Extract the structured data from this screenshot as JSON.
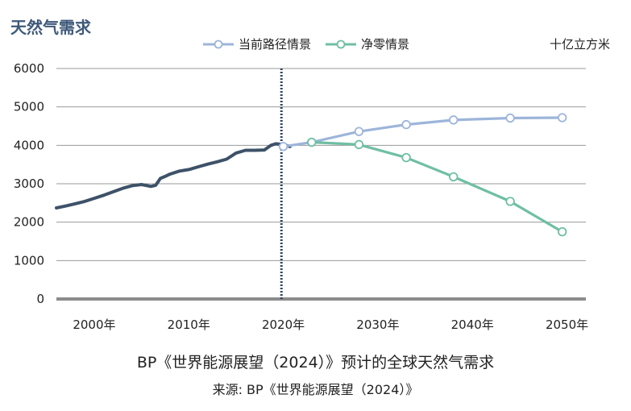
{
  "header": {
    "title": "天然气需求",
    "unit": "十亿立方米"
  },
  "footer": {
    "caption": "BP《世界能源展望（2024）》预计的全球天然气需求",
    "source": "来源: BP《世界能源展望（2024）》"
  },
  "colors": {
    "history": "#3d5268",
    "current_trajectory": "#9db5da",
    "net_zero": "#6fbfa3",
    "grid": "#9a9a9a",
    "baseline": "#8c8c8c",
    "divider": "#2e4560"
  },
  "chart_data": {
    "type": "line",
    "title": "天然气需求",
    "ylabel": "十亿立方米",
    "xlim": [
      1996,
      2052
    ],
    "ylim": [
      0,
      6000
    ],
    "x_ticks": [
      2000,
      2010,
      2020,
      2030,
      2040,
      2050
    ],
    "x_tick_labels": [
      "2000年",
      "2010年",
      "2020年",
      "2030年",
      "2040年",
      "2050年"
    ],
    "y_ticks": [
      0,
      1000,
      2000,
      3000,
      4000,
      5000,
      6000
    ],
    "y_tick_labels": [
      "0",
      "1000",
      "2000",
      "3000",
      "4000",
      "5000",
      "6000"
    ],
    "divider_x": 2019.8,
    "legend_position": "top-center",
    "series": [
      {
        "key": "history",
        "markers": false,
        "x": [
          1996,
          1997,
          1998,
          1999,
          2000,
          2001,
          2002,
          2003,
          2004,
          2005,
          2006,
          2006.5,
          2007,
          2007.5,
          2008,
          2009,
          2010,
          2011,
          2012,
          2013,
          2014,
          2015,
          2016,
          2017,
          2018,
          2018.7,
          2019.2,
          2020,
          2020.7
        ],
        "values": [
          2370,
          2420,
          2480,
          2540,
          2620,
          2700,
          2790,
          2880,
          2950,
          2980,
          2930,
          2960,
          3140,
          3190,
          3250,
          3330,
          3370,
          3440,
          3510,
          3570,
          3640,
          3800,
          3870,
          3870,
          3880,
          4000,
          4040,
          4020,
          3970
        ]
      },
      {
        "key": "current_trajectory",
        "name": "当前路径情景",
        "markers": true,
        "x": [
          2020,
          2023,
          2028,
          2033,
          2038,
          2044,
          2049.5
        ],
        "values": [
          3970,
          4080,
          4360,
          4540,
          4660,
          4710,
          4720
        ]
      },
      {
        "key": "net_zero",
        "name": "净零情景",
        "markers": true,
        "x": [
          2023,
          2028,
          2033,
          2038,
          2044,
          2049.5
        ],
        "values": [
          4080,
          4020,
          3680,
          3180,
          2540,
          1750
        ]
      }
    ]
  }
}
